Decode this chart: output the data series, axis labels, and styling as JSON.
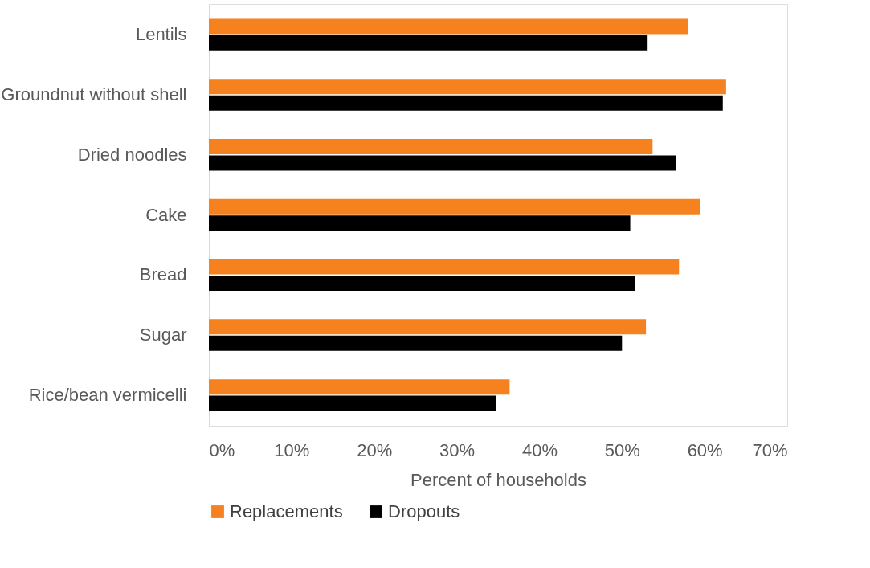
{
  "chart_data": {
    "type": "bar",
    "orientation": "horizontal",
    "categories": [
      "Lentils",
      "Groundnut without shell",
      "Dried noodles",
      "Cake",
      "Bread",
      "Sugar",
      "Rice/bean vermicelli"
    ],
    "series": [
      {
        "name": "Replacements",
        "color": "#f5821f",
        "values": [
          58.0,
          62.6,
          53.7,
          59.5,
          56.9,
          52.9,
          36.4
        ]
      },
      {
        "name": "Dropouts",
        "color": "#000000",
        "values": [
          53.1,
          62.2,
          56.5,
          51.0,
          51.6,
          50.0,
          34.8
        ]
      }
    ],
    "xlabel": "Percent of households",
    "xlim": [
      0,
      70
    ],
    "xticks": [
      {
        "value": 0,
        "label": "0%"
      },
      {
        "value": 10,
        "label": "10%"
      },
      {
        "value": 20,
        "label": "20%"
      },
      {
        "value": 30,
        "label": "30%"
      },
      {
        "value": 40,
        "label": "40%"
      },
      {
        "value": 50,
        "label": "50%"
      },
      {
        "value": 60,
        "label": "60%"
      },
      {
        "value": 70,
        "label": "70%"
      }
    ],
    "grid": false,
    "legend": "bottom"
  }
}
